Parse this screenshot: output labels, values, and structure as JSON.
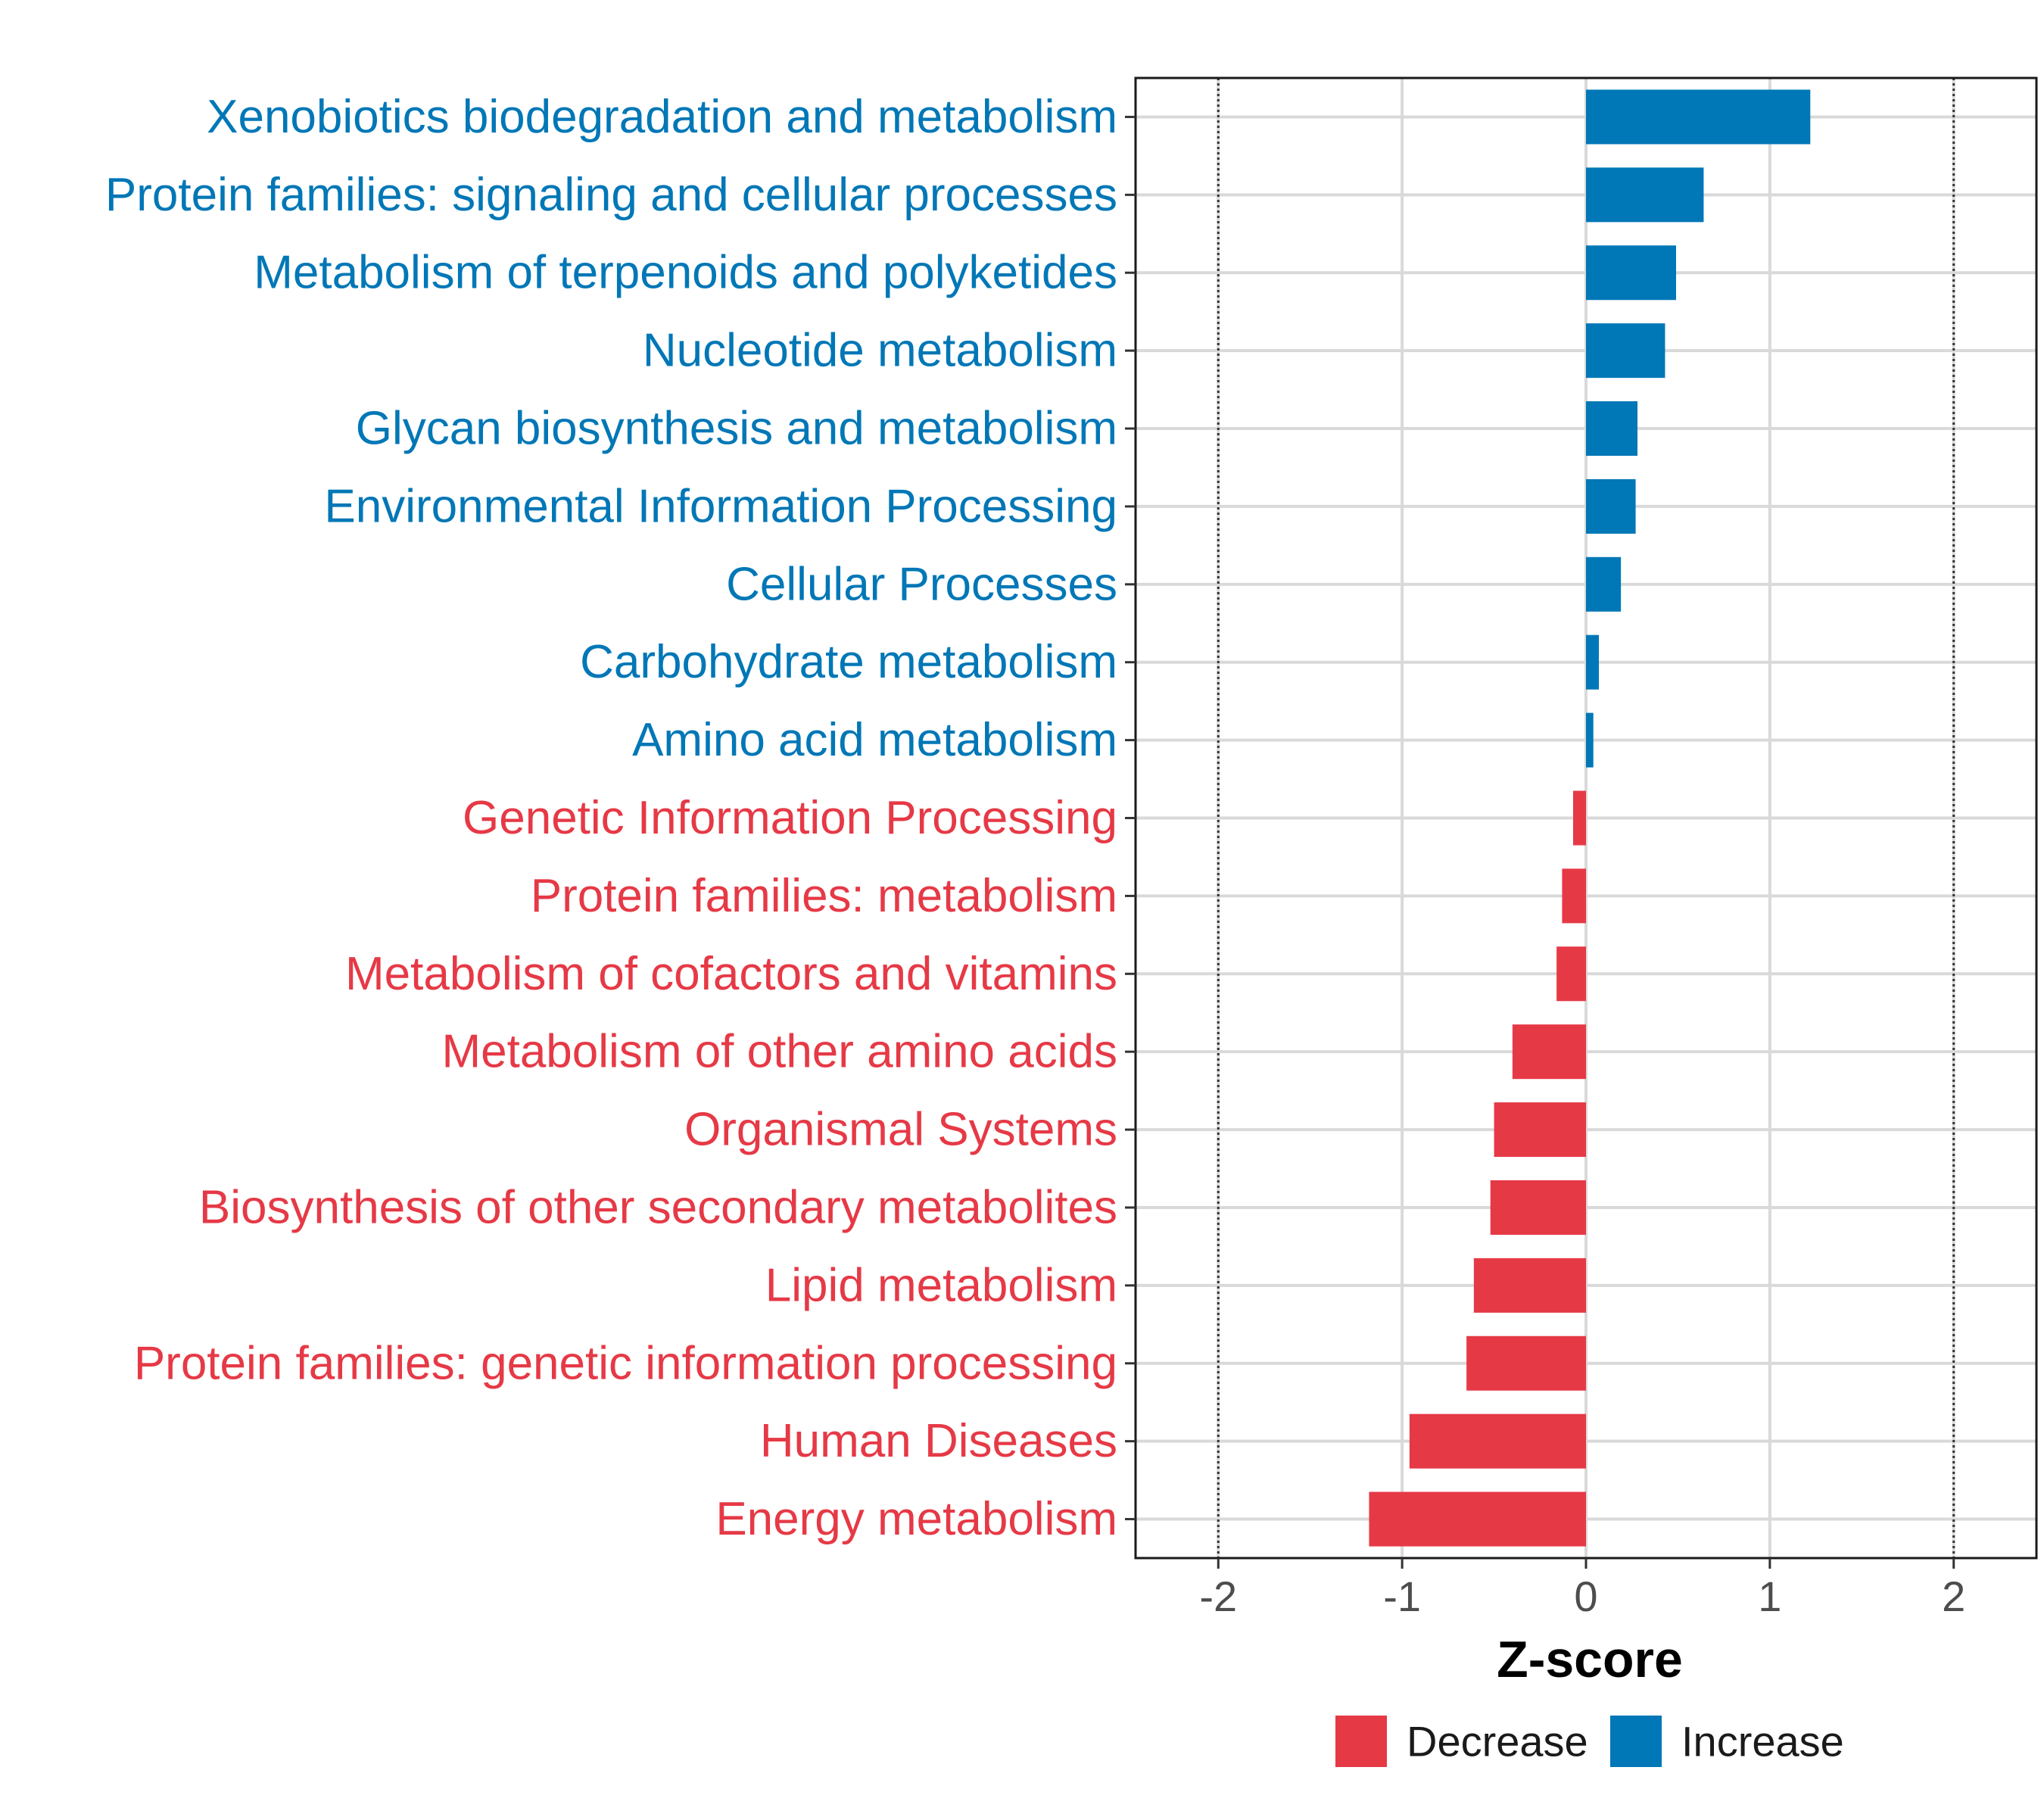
{
  "chart_data": {
    "type": "bar",
    "orientation": "horizontal",
    "title": "",
    "xlabel": "Z-score",
    "ylabel": "",
    "xlim": [
      -2.45,
      2.45
    ],
    "x_ticks": [
      -2,
      -1,
      0,
      1,
      2
    ],
    "x_tick_labels": [
      "-2",
      "-1",
      "0",
      "1",
      "2"
    ],
    "reference_lines": [
      -2,
      2
    ],
    "grid": true,
    "colors": {
      "Decrease": "#E63946",
      "Increase": "#0077B6"
    },
    "legend": {
      "position": "bottom",
      "entries": [
        {
          "label": "Decrease",
          "color": "#E63946"
        },
        {
          "label": "Increase",
          "color": "#0077B6"
        }
      ]
    },
    "categories": [
      "Xenobiotics biodegradation and metabolism",
      "Protein families: signaling and cellular processes",
      "Metabolism of terpenoids and polyketides",
      "Nucleotide metabolism",
      "Glycan biosynthesis and metabolism",
      "Environmental Information Processing",
      "Cellular Processes",
      "Carbohydrate metabolism",
      "Amino acid metabolism",
      "Genetic Information Processing",
      "Protein families: metabolism",
      "Metabolism of cofactors and vitamins",
      "Metabolism of other amino acids",
      "Organismal Systems",
      "Biosynthesis of other secondary metabolites",
      "Lipid metabolism",
      "Protein families: genetic information processing",
      "Human Diseases",
      "Energy metabolism"
    ],
    "values": [
      1.22,
      0.64,
      0.49,
      0.43,
      0.28,
      0.27,
      0.19,
      0.07,
      0.04,
      -0.07,
      -0.13,
      -0.16,
      -0.4,
      -0.5,
      -0.52,
      -0.61,
      -0.65,
      -0.96,
      -1.18
    ],
    "groups": [
      "Increase",
      "Increase",
      "Increase",
      "Increase",
      "Increase",
      "Increase",
      "Increase",
      "Increase",
      "Increase",
      "Decrease",
      "Decrease",
      "Decrease",
      "Decrease",
      "Decrease",
      "Decrease",
      "Decrease",
      "Decrease",
      "Decrease",
      "Decrease"
    ]
  }
}
